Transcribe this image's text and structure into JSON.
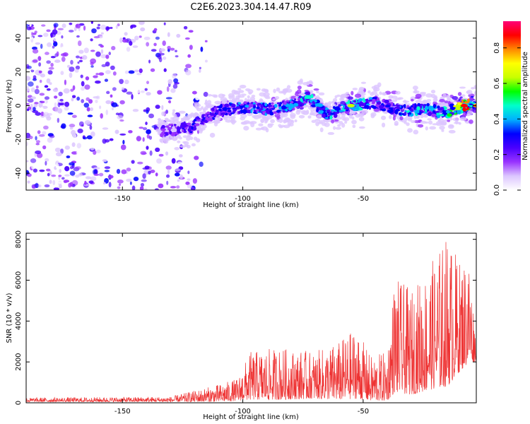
{
  "title": "C2E6.2023.304.14.47.R09",
  "chart_data": [
    {
      "type": "heatmap",
      "xlabel": "Height of straight line (km)",
      "ylabel": "Frequency (Hz)",
      "xlim": [
        -190,
        -3
      ],
      "ylim": [
        -50,
        50
      ],
      "x_ticks": [
        -150,
        -100,
        -50
      ],
      "y_ticks": [
        -40,
        -20,
        0,
        20,
        40
      ],
      "colorbar": {
        "label": "Normalized spectral amplitude",
        "range": [
          0,
          0.95
        ],
        "ticks": [
          0.0,
          0.2,
          0.4,
          0.6,
          0.8
        ],
        "colormap": [
          "#ffffff",
          "#dcc6ff",
          "#9933ff",
          "#4a00ff",
          "#0000ff",
          "#00b0ff",
          "#00ffcc",
          "#00ff00",
          "#c8ff00",
          "#ffff00",
          "#ff8800",
          "#ff0000",
          "#ff0077"
        ]
      },
      "ridge": [
        {
          "x": -135,
          "f": -15,
          "amp": 0.25
        },
        {
          "x": -122,
          "f": -13,
          "amp": 0.3
        },
        {
          "x": -110,
          "f": -3,
          "amp": 0.35
        },
        {
          "x": -100,
          "f": -1,
          "amp": 0.4
        },
        {
          "x": -90,
          "f": -2,
          "amp": 0.4
        },
        {
          "x": -80,
          "f": 0,
          "amp": 0.45
        },
        {
          "x": -73,
          "f": 5,
          "amp": 0.5
        },
        {
          "x": -65,
          "f": -5,
          "amp": 0.45
        },
        {
          "x": -55,
          "f": 0,
          "amp": 0.55
        },
        {
          "x": -45,
          "f": 2,
          "amp": 0.4
        },
        {
          "x": -35,
          "f": -3,
          "amp": 0.45
        },
        {
          "x": -25,
          "f": -2,
          "amp": 0.5
        },
        {
          "x": -15,
          "f": -4,
          "amp": 0.55
        },
        {
          "x": -8,
          "f": 0,
          "amp": 0.9
        },
        {
          "x": -3,
          "f": 0,
          "amp": 0.75
        }
      ],
      "noise_region_x": [
        -190,
        -115
      ]
    },
    {
      "type": "line",
      "xlabel": "Height of straight line (km)",
      "ylabel": "SNR (10 * v/v)",
      "xlim": [
        -190,
        -3
      ],
      "ylim": [
        0,
        8300
      ],
      "x_ticks": [
        -150,
        -100,
        -50
      ],
      "y_ticks": [
        0,
        2000,
        4000,
        6000,
        8000
      ],
      "color": "#ee3333",
      "envelope": [
        {
          "x": -190,
          "lo": 50,
          "hi": 250
        },
        {
          "x": -130,
          "lo": 50,
          "hi": 300
        },
        {
          "x": -120,
          "lo": 50,
          "hi": 600
        },
        {
          "x": -110,
          "lo": 50,
          "hi": 900
        },
        {
          "x": -102,
          "lo": 100,
          "hi": 1200
        },
        {
          "x": -97,
          "lo": 150,
          "hi": 2500
        },
        {
          "x": -85,
          "lo": 150,
          "hi": 2700
        },
        {
          "x": -70,
          "lo": 200,
          "hi": 2500
        },
        {
          "x": -60,
          "lo": 150,
          "hi": 3000
        },
        {
          "x": -53,
          "lo": 200,
          "hi": 3700
        },
        {
          "x": -47,
          "lo": 100,
          "hi": 2300
        },
        {
          "x": -40,
          "lo": 100,
          "hi": 2500
        },
        {
          "x": -37,
          "lo": 500,
          "hi": 6200
        },
        {
          "x": -30,
          "lo": 400,
          "hi": 5500
        },
        {
          "x": -20,
          "lo": 700,
          "hi": 7200
        },
        {
          "x": -15,
          "lo": 800,
          "hi": 8300
        },
        {
          "x": -10,
          "lo": 1500,
          "hi": 7000
        },
        {
          "x": -6,
          "lo": 2000,
          "hi": 7300
        },
        {
          "x": -3,
          "lo": 2000,
          "hi": 3000
        }
      ]
    }
  ]
}
